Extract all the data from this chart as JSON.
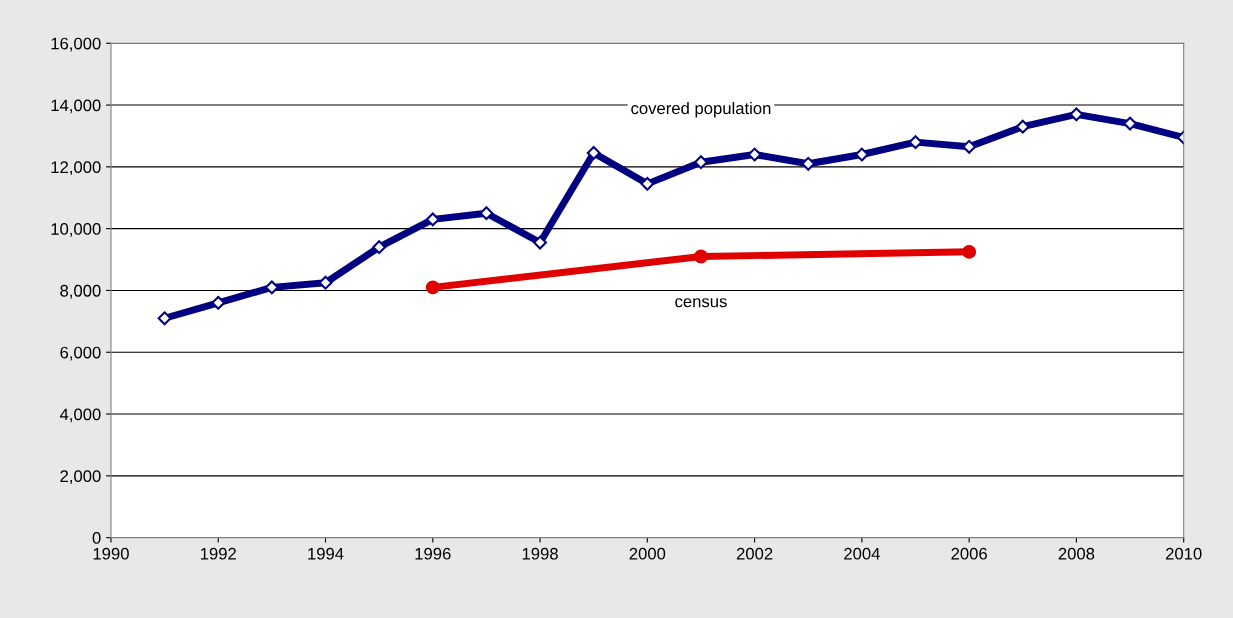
{
  "chart_data": {
    "type": "line",
    "x": [
      1991,
      1992,
      1993,
      1994,
      1995,
      1996,
      1997,
      1998,
      1999,
      2000,
      2001,
      2002,
      2003,
      2004,
      2005,
      2006,
      2007,
      2008,
      2009,
      2010
    ],
    "series": [
      {
        "name": "covered population",
        "color": "#000080",
        "marker": "diamond",
        "values": [
          7100,
          7600,
          8100,
          8250,
          9400,
          10300,
          10500,
          9550,
          12450,
          11450,
          12150,
          12400,
          12100,
          12400,
          12800,
          12650,
          13300,
          13700,
          13400,
          12950
        ]
      },
      {
        "name": "census",
        "color": "#e00000",
        "marker": "circle",
        "x": [
          1996,
          2001,
          2006
        ],
        "values": [
          8100,
          9100,
          9250
        ]
      }
    ],
    "xlim": [
      1990,
      2010
    ],
    "xticks": [
      1990,
      1992,
      1994,
      1996,
      1998,
      2000,
      2002,
      2004,
      2006,
      2008,
      2010
    ],
    "ylim": [
      0,
      16000
    ],
    "yticks": [
      {
        "value": 0,
        "label": "0"
      },
      {
        "value": 2000,
        "label": "2,000"
      },
      {
        "value": 4000,
        "label": "4,000"
      },
      {
        "value": 6000,
        "label": "6,000"
      },
      {
        "value": 8000,
        "label": "8,000"
      },
      {
        "value": 10000,
        "label": "10,000"
      },
      {
        "value": 12000,
        "label": "12,000"
      },
      {
        "value": 14000,
        "label": "14,000"
      },
      {
        "value": 16000,
        "label": "16,000"
      }
    ],
    "grid": "y",
    "legend": false
  }
}
